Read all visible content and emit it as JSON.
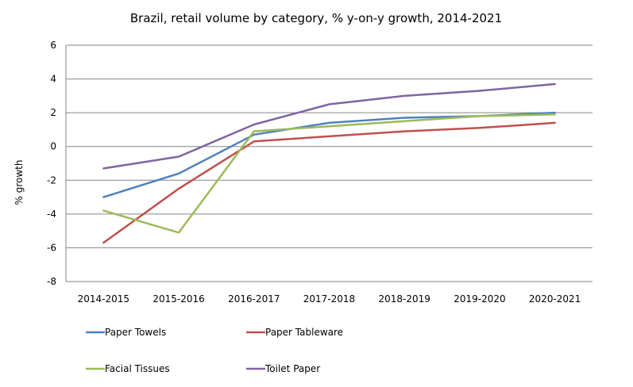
{
  "chart_data": {
    "type": "line",
    "title": "Brazil, retail volume by category, % y-on-y growth, 2014-2021",
    "xlabel": "",
    "ylabel": "% growth",
    "categories": [
      "2014-2015",
      "2015-2016",
      "2016-2017",
      "2017-2018",
      "2018-2019",
      "2019-2020",
      "2020-2021"
    ],
    "ylim": [
      -8,
      6
    ],
    "yticks": [
      6,
      4,
      2,
      0,
      -2,
      -4,
      -6,
      -8
    ],
    "grid": true,
    "legend_position": "bottom",
    "series": [
      {
        "name": "Paper Towels",
        "color": "#4f81bd",
        "values": [
          -3.0,
          -1.6,
          0.7,
          1.4,
          1.7,
          1.8,
          2.0
        ]
      },
      {
        "name": "Paper Tableware",
        "color": "#c0504d",
        "values": [
          -5.7,
          -2.5,
          0.3,
          0.6,
          0.9,
          1.1,
          1.4
        ]
      },
      {
        "name": "Facial Tissues",
        "color": "#9bbb59",
        "values": [
          -3.8,
          -5.1,
          0.9,
          1.2,
          1.5,
          1.8,
          1.9
        ]
      },
      {
        "name": "Toilet Paper",
        "color": "#8064a2",
        "values": [
          -1.3,
          -0.6,
          1.3,
          2.5,
          3.0,
          3.3,
          3.7
        ]
      }
    ]
  }
}
